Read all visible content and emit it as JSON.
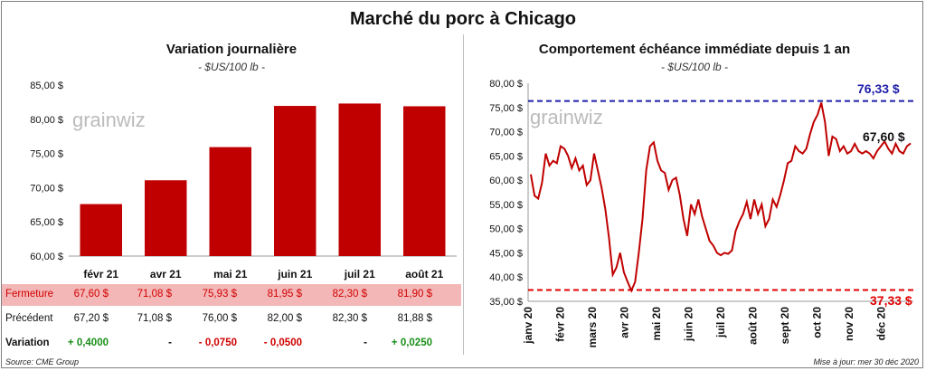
{
  "title": "Marché du porc à Chicago",
  "source": "Source: CME Group",
  "updated": "Mise à jour: mer 30 déc 2020",
  "logo": "grainwiz",
  "left_chart": {
    "title": "Variation  journalière",
    "units": "- $US/100 lb -",
    "chart_data": {
      "type": "bar",
      "categories": [
        "févr 21",
        "avr 21",
        "mai 21",
        "juin 21",
        "juil 21",
        "août 21"
      ],
      "values": [
        67.6,
        71.08,
        75.93,
        81.95,
        82.3,
        81.9
      ],
      "ylim": [
        60,
        85
      ],
      "yticks": [
        "60,00 $",
        "65,00 $",
        "70,00 $",
        "75,00 $",
        "80,00 $",
        "85,00 $"
      ],
      "bar_color": "#c00000",
      "grid": false
    }
  },
  "table": {
    "close_label": "Fermeture",
    "close_values": [
      "67,60  $",
      "71,08  $",
      "75,93  $",
      "81,95  $",
      "82,30  $",
      "81,90  $"
    ],
    "prev_label": "Précédent",
    "prev_values": [
      "67,20  $",
      "71,08  $",
      "76,00  $",
      "82,00  $",
      "82,30  $",
      "81,88  $"
    ],
    "var_label": "Variation",
    "var_values": [
      "+ 0,4000",
      "-",
      "- 0,0750",
      "- 0,0500",
      "-",
      "+ 0,0250"
    ],
    "var_signs": [
      "pos",
      "zero",
      "neg",
      "neg",
      "zero",
      "pos"
    ]
  },
  "right_chart": {
    "title": "Comportement  échéance immédiate depuis 1 an",
    "units": "- $US/100 lb -",
    "chart_data": {
      "type": "line",
      "x_labels": [
        "janv 20",
        "févr 20",
        "mars 20",
        "avr 20",
        "mai 20",
        "juin 20",
        "juil 20",
        "août 20",
        "sept 20",
        "oct 20",
        "nov 20",
        "déc 20"
      ],
      "ylim": [
        35,
        80
      ],
      "yticks": [
        "35,00 $",
        "40,00 $",
        "45,00 $",
        "50,00 $",
        "55,00 $",
        "60,00 $",
        "65,00 $",
        "70,00 $",
        "75,00 $",
        "80,00 $"
      ],
      "values": [
        61.2,
        56.8,
        56.2,
        59.5,
        65.5,
        63.0,
        64.0,
        63.5,
        67.0,
        66.5,
        65.0,
        62.5,
        64.5,
        62.0,
        63.0,
        59.0,
        60.0,
        65.5,
        62.0,
        58.5,
        54.0,
        48.0,
        40.5,
        42.0,
        45.0,
        41.0,
        39.0,
        37.2,
        39.0,
        45.0,
        52.0,
        62.0,
        67.0,
        67.8,
        64.0,
        62.0,
        61.5,
        58.0,
        60.0,
        60.5,
        57.0,
        52.0,
        48.5,
        55.0,
        53.0,
        56.0,
        52.5,
        50.0,
        47.5,
        46.5,
        45.0,
        44.5,
        45.0,
        44.8,
        45.5,
        49.5,
        51.5,
        53.0,
        55.5,
        52.0,
        56.0,
        53.0,
        55.0,
        50.5,
        52.0,
        56.0,
        54.5,
        57.0,
        60.0,
        63.5,
        64.0,
        67.0,
        66.0,
        65.5,
        66.5,
        69.5,
        72.0,
        73.5,
        76.0,
        72.0,
        65.0,
        69.0,
        68.5,
        66.0,
        67.0,
        65.5,
        66.0,
        67.5,
        66.0,
        65.5,
        66.0,
        65.5,
        64.5,
        66.0,
        67.0,
        68.0,
        66.5,
        65.5,
        67.5,
        66.0,
        65.5,
        67.0,
        67.6
      ],
      "high": 76.33,
      "low": 37.33,
      "last": 67.6,
      "high_label": "76,33 $",
      "low_label": "37,33 $",
      "last_label": "67,60 $",
      "line_color": "#c00000",
      "high_color": "#1f1fa8",
      "low_color": "#e00000"
    }
  }
}
